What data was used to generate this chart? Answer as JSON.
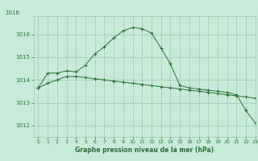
{
  "title": "Graphe pression niveau de la mer (hPa)",
  "background_color": "#c8ead8",
  "grid_color": "#a0c8b0",
  "line_color": "#2d6e3a",
  "xlim": [
    -0.5,
    23
  ],
  "ylim": [
    1011.5,
    1016.8
  ],
  "yticks": [
    1012,
    1013,
    1014,
    1015,
    1016
  ],
  "ytick_top_label": "1016",
  "xticks": [
    0,
    1,
    2,
    3,
    4,
    5,
    6,
    7,
    8,
    9,
    10,
    11,
    12,
    13,
    14,
    15,
    16,
    17,
    18,
    19,
    20,
    21,
    22,
    23
  ],
  "series1": [
    1013.65,
    1013.85,
    1014.0,
    1014.15,
    1014.15,
    1014.1,
    1014.05,
    1014.0,
    1013.95,
    1013.9,
    1013.85,
    1013.8,
    1013.75,
    1013.7,
    1013.65,
    1013.6,
    1013.55,
    1013.5,
    1013.45,
    1013.4,
    1013.35,
    1013.3,
    1013.25,
    1013.2
  ],
  "series2": [
    1013.65,
    1014.3,
    1014.3,
    1014.4,
    1014.35,
    1014.65,
    1015.15,
    1015.45,
    1015.85,
    1016.15,
    1016.3,
    1016.25,
    1016.05,
    1015.4,
    1014.7,
    1013.75,
    1013.65,
    1013.6,
    1013.55,
    1013.5,
    1013.45,
    1013.35,
    1012.65,
    1012.1
  ]
}
